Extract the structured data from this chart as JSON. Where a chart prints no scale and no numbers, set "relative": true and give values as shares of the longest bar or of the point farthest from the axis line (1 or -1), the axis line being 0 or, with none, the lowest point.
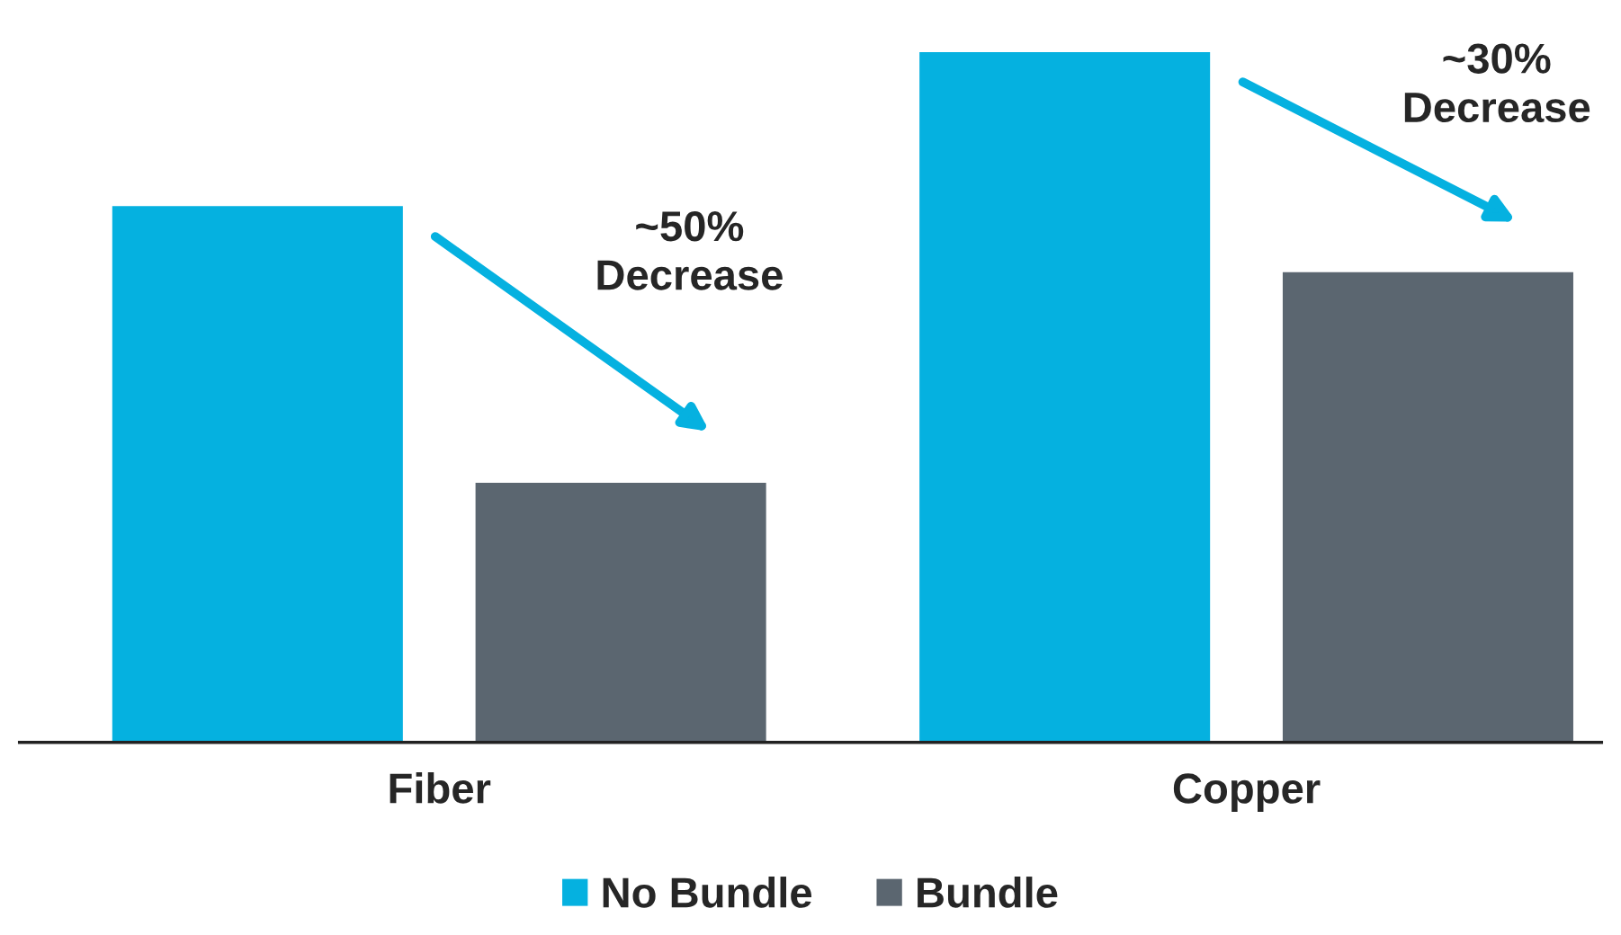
{
  "chart_data": {
    "type": "bar",
    "relative": true,
    "categories": [
      "Fiber",
      "Copper"
    ],
    "series": [
      {
        "name": "No Bundle",
        "color": "#05b1e0",
        "values": [
          0.777,
          1
        ]
      },
      {
        "name": "Bundle",
        "color": "#5b6670",
        "values": [
          0.376,
          0.681
        ]
      }
    ],
    "annotations": [
      "~50%\nDecrease",
      "~30%\nDecrease"
    ],
    "legend": "bottom",
    "grid": false
  }
}
